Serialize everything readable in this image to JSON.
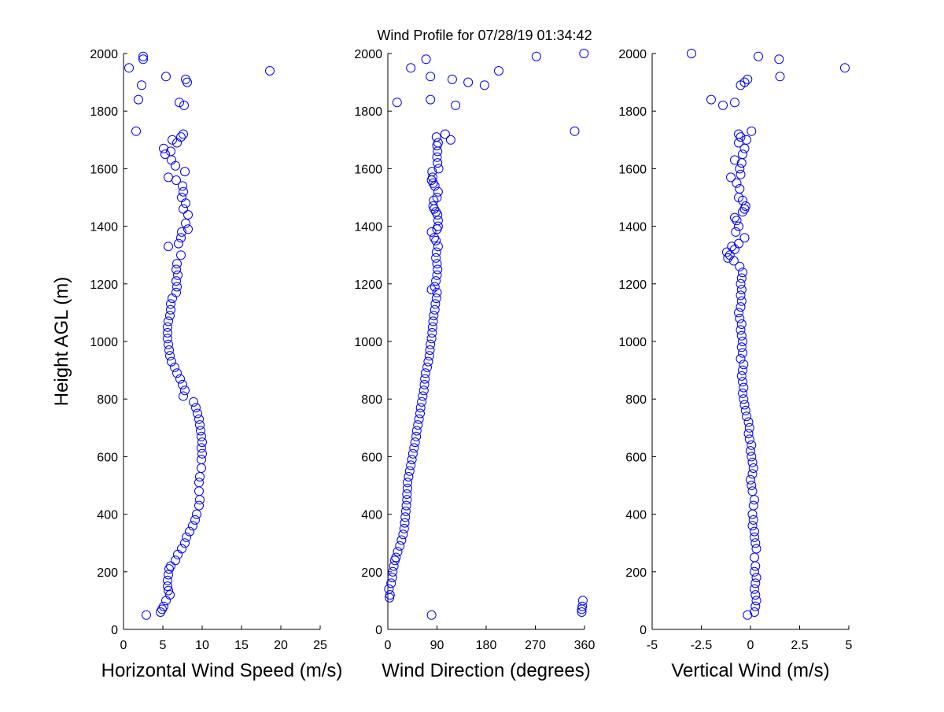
{
  "title": "Wind Profile for  07/28/19 01:34:42",
  "ylabel": "Height AGL (m)",
  "marker_color": "#0000ff",
  "chart_data": [
    {
      "type": "scatter",
      "xlabel": "Horizontal Wind Speed (m/s)",
      "ylabel": "Height AGL (m)",
      "xlim": [
        0,
        25
      ],
      "ylim": [
        0,
        2000
      ],
      "xticks": [
        0,
        5,
        10,
        15,
        20,
        25
      ],
      "xtick_labels": [
        "0",
        "5",
        "10",
        "15",
        "20",
        "25"
      ],
      "yticks": [
        0,
        200,
        400,
        600,
        800,
        1000,
        1200,
        1400,
        1600,
        1800,
        2000
      ],
      "ytick_labels": [
        "0",
        "200",
        "400",
        "600",
        "800",
        "1000",
        "1200",
        "1400",
        "1600",
        "1800",
        "2000"
      ],
      "grid": false,
      "marker": "open-circle",
      "points": [
        [
          2.9,
          50
        ],
        [
          4.7,
          60
        ],
        [
          4.9,
          70
        ],
        [
          5.1,
          80
        ],
        [
          5.4,
          100
        ],
        [
          5.9,
          120
        ],
        [
          5.7,
          135
        ],
        [
          5.6,
          150
        ],
        [
          5.6,
          170
        ],
        [
          5.7,
          190
        ],
        [
          5.8,
          210
        ],
        [
          6.0,
          220
        ],
        [
          6.6,
          240
        ],
        [
          6.9,
          260
        ],
        [
          7.4,
          280
        ],
        [
          7.8,
          300
        ],
        [
          8.0,
          320
        ],
        [
          8.4,
          340
        ],
        [
          8.8,
          360
        ],
        [
          9.1,
          380
        ],
        [
          9.3,
          400
        ],
        [
          9.6,
          430
        ],
        [
          9.7,
          450
        ],
        [
          9.6,
          480
        ],
        [
          9.6,
          510
        ],
        [
          9.7,
          530
        ],
        [
          9.9,
          560
        ],
        [
          9.9,
          590
        ],
        [
          10.0,
          610
        ],
        [
          9.9,
          630
        ],
        [
          10.0,
          650
        ],
        [
          9.9,
          670
        ],
        [
          9.8,
          690
        ],
        [
          9.7,
          710
        ],
        [
          9.6,
          730
        ],
        [
          9.4,
          750
        ],
        [
          9.2,
          770
        ],
        [
          8.9,
          790
        ],
        [
          7.6,
          810
        ],
        [
          7.8,
          830
        ],
        [
          7.5,
          850
        ],
        [
          7.2,
          870
        ],
        [
          6.8,
          890
        ],
        [
          6.5,
          910
        ],
        [
          6.1,
          930
        ],
        [
          5.9,
          950
        ],
        [
          5.8,
          970
        ],
        [
          5.7,
          990
        ],
        [
          5.6,
          1010
        ],
        [
          5.6,
          1030
        ],
        [
          5.6,
          1050
        ],
        [
          5.7,
          1070
        ],
        [
          5.9,
          1090
        ],
        [
          6.0,
          1110
        ],
        [
          6.0,
          1130
        ],
        [
          6.2,
          1150
        ],
        [
          6.7,
          1170
        ],
        [
          6.8,
          1190
        ],
        [
          6.7,
          1210
        ],
        [
          6.9,
          1230
        ],
        [
          6.7,
          1250
        ],
        [
          6.8,
          1270
        ],
        [
          7.3,
          1300
        ],
        [
          5.7,
          1330
        ],
        [
          7.0,
          1340
        ],
        [
          7.3,
          1360
        ],
        [
          7.4,
          1380
        ],
        [
          8.2,
          1390
        ],
        [
          7.9,
          1410
        ],
        [
          8.2,
          1440
        ],
        [
          7.6,
          1460
        ],
        [
          7.9,
          1480
        ],
        [
          7.4,
          1500
        ],
        [
          7.6,
          1520
        ],
        [
          7.5,
          1540
        ],
        [
          6.7,
          1560
        ],
        [
          5.7,
          1570
        ],
        [
          7.8,
          1590
        ],
        [
          6.6,
          1610
        ],
        [
          6.1,
          1630
        ],
        [
          5.3,
          1650
        ],
        [
          6.0,
          1660
        ],
        [
          5.1,
          1670
        ],
        [
          6.8,
          1690
        ],
        [
          6.2,
          1700
        ],
        [
          7.3,
          1710
        ],
        [
          7.6,
          1720
        ],
        [
          1.6,
          1730
        ],
        [
          7.7,
          1820
        ],
        [
          7.1,
          1830
        ],
        [
          1.9,
          1840
        ],
        [
          2.3,
          1890
        ],
        [
          8.1,
          1900
        ],
        [
          7.9,
          1910
        ],
        [
          5.4,
          1920
        ],
        [
          18.6,
          1940
        ],
        [
          0.7,
          1950
        ],
        [
          2.5,
          1980
        ],
        [
          2.5,
          1990
        ]
      ]
    },
    {
      "type": "scatter",
      "xlabel": "Wind Direction (degrees)",
      "ylabel": "",
      "xlim": [
        0,
        360
      ],
      "ylim": [
        0,
        2000
      ],
      "xticks": [
        0,
        90,
        180,
        270,
        360
      ],
      "xtick_labels": [
        "0",
        "90",
        "180",
        "270",
        "360"
      ],
      "yticks": [
        0,
        200,
        400,
        600,
        800,
        1000,
        1200,
        1400,
        1600,
        1800,
        2000
      ],
      "ytick_labels": [
        "0",
        "200",
        "400",
        "600",
        "800",
        "1000",
        "1200",
        "1400",
        "1600",
        "1800",
        "2000"
      ],
      "grid": false,
      "marker": "open-circle",
      "points": [
        [
          80,
          50
        ],
        [
          355,
          60
        ],
        [
          355,
          70
        ],
        [
          356,
          80
        ],
        [
          357,
          100
        ],
        [
          3,
          110
        ],
        [
          4,
          120
        ],
        [
          2,
          140
        ],
        [
          6,
          160
        ],
        [
          8,
          180
        ],
        [
          9,
          200
        ],
        [
          11,
          220
        ],
        [
          13,
          240
        ],
        [
          15,
          250
        ],
        [
          18,
          270
        ],
        [
          22,
          290
        ],
        [
          25,
          310
        ],
        [
          28,
          330
        ],
        [
          30,
          350
        ],
        [
          31,
          370
        ],
        [
          32,
          390
        ],
        [
          33,
          410
        ],
        [
          34,
          430
        ],
        [
          35,
          450
        ],
        [
          35,
          470
        ],
        [
          36,
          490
        ],
        [
          36,
          510
        ],
        [
          38,
          530
        ],
        [
          40,
          550
        ],
        [
          42,
          570
        ],
        [
          44,
          590
        ],
        [
          46,
          610
        ],
        [
          48,
          630
        ],
        [
          50,
          650
        ],
        [
          52,
          670
        ],
        [
          53,
          690
        ],
        [
          55,
          710
        ],
        [
          57,
          730
        ],
        [
          59,
          750
        ],
        [
          60,
          770
        ],
        [
          62,
          790
        ],
        [
          64,
          810
        ],
        [
          66,
          830
        ],
        [
          67,
          850
        ],
        [
          68,
          870
        ],
        [
          69,
          890
        ],
        [
          72,
          910
        ],
        [
          74,
          930
        ],
        [
          76,
          950
        ],
        [
          77,
          970
        ],
        [
          78,
          990
        ],
        [
          80,
          1010
        ],
        [
          81,
          1030
        ],
        [
          82,
          1050
        ],
        [
          83,
          1070
        ],
        [
          84,
          1090
        ],
        [
          86,
          1110
        ],
        [
          87,
          1130
        ],
        [
          89,
          1150
        ],
        [
          90,
          1170
        ],
        [
          80,
          1180
        ],
        [
          86,
          1190
        ],
        [
          88,
          1210
        ],
        [
          90,
          1230
        ],
        [
          91,
          1250
        ],
        [
          90,
          1270
        ],
        [
          88,
          1290
        ],
        [
          89,
          1310
        ],
        [
          92,
          1330
        ],
        [
          88,
          1350
        ],
        [
          85,
          1360
        ],
        [
          80,
          1380
        ],
        [
          90,
          1390
        ],
        [
          92,
          1400
        ],
        [
          92,
          1420
        ],
        [
          91,
          1440
        ],
        [
          88,
          1450
        ],
        [
          85,
          1460
        ],
        [
          83,
          1470
        ],
        [
          84,
          1490
        ],
        [
          90,
          1500
        ],
        [
          92,
          1520
        ],
        [
          86,
          1540
        ],
        [
          83,
          1550
        ],
        [
          80,
          1560
        ],
        [
          82,
          1570
        ],
        [
          81,
          1590
        ],
        [
          93,
          1600
        ],
        [
          91,
          1620
        ],
        [
          90,
          1640
        ],
        [
          91,
          1660
        ],
        [
          90,
          1680
        ],
        [
          92,
          1690
        ],
        [
          89,
          1710
        ],
        [
          105,
          1720
        ],
        [
          115,
          1700
        ],
        [
          342,
          1730
        ],
        [
          124,
          1820
        ],
        [
          17,
          1830
        ],
        [
          78,
          1840
        ],
        [
          177,
          1890
        ],
        [
          147,
          1900
        ],
        [
          118,
          1910
        ],
        [
          78,
          1920
        ],
        [
          203,
          1940
        ],
        [
          42,
          1950
        ],
        [
          70,
          1980
        ],
        [
          272,
          1990
        ],
        [
          359,
          2000
        ]
      ]
    },
    {
      "type": "scatter",
      "xlabel": "Vertical Wind (m/s)",
      "ylabel": "",
      "xlim": [
        -5,
        5
      ],
      "ylim": [
        0,
        2000
      ],
      "xticks": [
        -5,
        -2.5,
        0,
        2.5,
        5
      ],
      "xtick_labels": [
        "-5",
        "-2.5",
        "0",
        "2.5",
        "5"
      ],
      "yticks": [
        0,
        200,
        400,
        600,
        800,
        1000,
        1200,
        1400,
        1600,
        1800,
        2000
      ],
      "ytick_labels": [
        "0",
        "200",
        "400",
        "600",
        "800",
        "1000",
        "1200",
        "1400",
        "1600",
        "1800",
        "2000"
      ],
      "grid": false,
      "marker": "open-circle",
      "points": [
        [
          -0.15,
          50
        ],
        [
          0.2,
          60
        ],
        [
          0.25,
          80
        ],
        [
          0.3,
          100
        ],
        [
          0.25,
          120
        ],
        [
          0.2,
          140
        ],
        [
          0.25,
          160
        ],
        [
          0.3,
          180
        ],
        [
          0.2,
          200
        ],
        [
          0.25,
          220
        ],
        [
          0.2,
          250
        ],
        [
          0.3,
          280
        ],
        [
          0.25,
          300
        ],
        [
          0.2,
          320
        ],
        [
          0.2,
          340
        ],
        [
          0.1,
          360
        ],
        [
          0.15,
          380
        ],
        [
          0.1,
          400
        ],
        [
          0.15,
          430
        ],
        [
          0.2,
          450
        ],
        [
          0.1,
          480
        ],
        [
          0.05,
          500
        ],
        [
          0.0,
          520
        ],
        [
          0.1,
          540
        ],
        [
          0.15,
          560
        ],
        [
          0.1,
          580
        ],
        [
          0.05,
          600
        ],
        [
          0.0,
          620
        ],
        [
          0.05,
          640
        ],
        [
          -0.05,
          660
        ],
        [
          -0.1,
          680
        ],
        [
          -0.05,
          700
        ],
        [
          -0.1,
          720
        ],
        [
          -0.2,
          740
        ],
        [
          -0.25,
          760
        ],
        [
          -0.3,
          780
        ],
        [
          -0.35,
          800
        ],
        [
          -0.4,
          820
        ],
        [
          -0.35,
          840
        ],
        [
          -0.4,
          860
        ],
        [
          -0.45,
          880
        ],
        [
          -0.4,
          900
        ],
        [
          -0.35,
          920
        ],
        [
          -0.5,
          940
        ],
        [
          -0.4,
          960
        ],
        [
          -0.45,
          980
        ],
        [
          -0.4,
          1000
        ],
        [
          -0.45,
          1020
        ],
        [
          -0.5,
          1040
        ],
        [
          -0.45,
          1060
        ],
        [
          -0.55,
          1080
        ],
        [
          -0.6,
          1100
        ],
        [
          -0.5,
          1120
        ],
        [
          -0.45,
          1140
        ],
        [
          -0.5,
          1160
        ],
        [
          -0.45,
          1180
        ],
        [
          -0.5,
          1200
        ],
        [
          -0.45,
          1220
        ],
        [
          -0.4,
          1240
        ],
        [
          -0.55,
          1260
        ],
        [
          -0.85,
          1280
        ],
        [
          -1.15,
          1290
        ],
        [
          -1.05,
          1300
        ],
        [
          -1.2,
          1310
        ],
        [
          -0.8,
          1320
        ],
        [
          -0.95,
          1330
        ],
        [
          -0.6,
          1340
        ],
        [
          -0.3,
          1360
        ],
        [
          -0.75,
          1380
        ],
        [
          -0.6,
          1400
        ],
        [
          -0.7,
          1420
        ],
        [
          -0.8,
          1430
        ],
        [
          -0.4,
          1450
        ],
        [
          -0.3,
          1460
        ],
        [
          -0.25,
          1470
        ],
        [
          -0.4,
          1490
        ],
        [
          -0.6,
          1500
        ],
        [
          -0.55,
          1530
        ],
        [
          -0.7,
          1550
        ],
        [
          -1.0,
          1570
        ],
        [
          -0.5,
          1580
        ],
        [
          -0.55,
          1600
        ],
        [
          -0.45,
          1620
        ],
        [
          -0.8,
          1630
        ],
        [
          -0.4,
          1650
        ],
        [
          -0.3,
          1670
        ],
        [
          -0.6,
          1690
        ],
        [
          -0.5,
          1710
        ],
        [
          -0.6,
          1720
        ],
        [
          -0.2,
          1700
        ],
        [
          0.05,
          1730
        ],
        [
          -0.8,
          1830
        ],
        [
          -1.4,
          1820
        ],
        [
          -2.0,
          1840
        ],
        [
          -0.3,
          1900
        ],
        [
          -0.5,
          1890
        ],
        [
          -0.15,
          1910
        ],
        [
          1.5,
          1920
        ],
        [
          4.8,
          1950
        ],
        [
          1.45,
          1980
        ],
        [
          0.4,
          1990
        ],
        [
          -3.0,
          2000
        ]
      ]
    }
  ]
}
